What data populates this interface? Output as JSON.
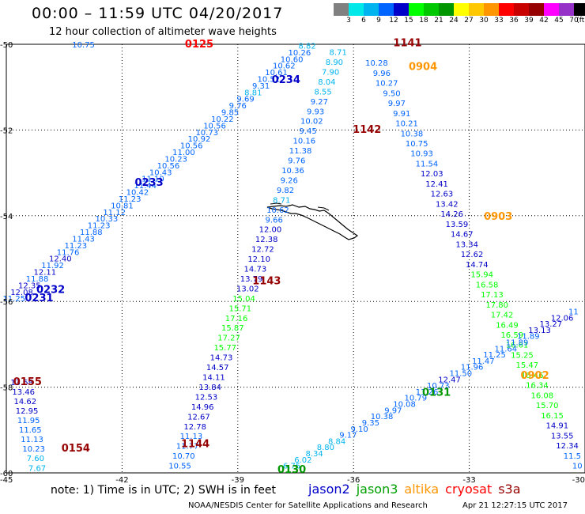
{
  "title": "00:00 – 11:59 UTC 04/20/2017",
  "subtitle": "12 hour collection of altimeter wave heights",
  "colorbar": {
    "colors": [
      "#808080",
      "#00e8e8",
      "#00b4f0",
      "#0064ff",
      "#0000c8",
      "#00ff00",
      "#00c800",
      "#009600",
      "#ffff00",
      "#ffc800",
      "#ff9600",
      "#ff0000",
      "#c80000",
      "#960000",
      "#ff00ff",
      "#9632c8",
      "#000000"
    ],
    "labels": [
      "3",
      "6",
      "9",
      "12",
      "15",
      "18",
      "21",
      "24",
      "27",
      "30",
      "33",
      "36",
      "39",
      "42",
      "45",
      "70",
      "(ft)"
    ]
  },
  "axes": {
    "lat_labels": [
      "-50",
      "-52",
      "-54",
      "-56",
      "-58",
      "-60"
    ],
    "lon_labels": [
      "-45",
      "-42",
      "-39",
      "-36",
      "-33",
      "-30"
    ]
  },
  "note": "note: 1) Time is in UTC; 2) SWH is in feet",
  "legend": [
    {
      "name": "jason2",
      "color": "#0000c8"
    },
    {
      "name": "jason3",
      "color": "#00a000"
    },
    {
      "name": "altika",
      "color": "#ff9600"
    },
    {
      "name": "cryosat",
      "color": "#ff0000"
    },
    {
      "name": "s3a",
      "color": "#960000"
    }
  ],
  "credit": "NOAA/NESDIS Center for Satellite Applications and Research",
  "stamp": "Apr 21 12:27:15 UTC 2017",
  "map": {
    "lat_range": [
      -60,
      -50
    ],
    "lon_range": [
      -45,
      -30
    ],
    "grid": true,
    "time_labels": [
      {
        "text": "0125",
        "lon": -40.0,
        "lat": -50.07,
        "color": "#ff0000"
      },
      {
        "text": "1141",
        "lon": -34.6,
        "lat": -50.05,
        "color": "#960000"
      },
      {
        "text": "0904",
        "lon": -34.2,
        "lat": -50.6,
        "color": "#ff9600"
      },
      {
        "text": "0234",
        "lon": -37.75,
        "lat": -50.9,
        "color": "#0000c8"
      },
      {
        "text": "1142",
        "lon": -35.65,
        "lat": -52.07,
        "color": "#960000"
      },
      {
        "text": "0233",
        "lon": -41.3,
        "lat": -53.3,
        "color": "#0000c8"
      },
      {
        "text": "0903",
        "lon": -32.25,
        "lat": -54.1,
        "color": "#ff9600"
      },
      {
        "text": "1143",
        "lon": -38.25,
        "lat": -55.6,
        "color": "#960000"
      },
      {
        "text": "0232",
        "lon": -43.85,
        "lat": -55.8,
        "color": "#0000c8"
      },
      {
        "text": "0231",
        "lon": -44.15,
        "lat": -56.0,
        "color": "#0000c8"
      },
      {
        "text": "0155",
        "lon": -44.45,
        "lat": -57.95,
        "color": "#960000"
      },
      {
        "text": "0902",
        "lon": -31.3,
        "lat": -57.8,
        "color": "#ff9600"
      },
      {
        "text": "0131",
        "lon": -33.85,
        "lat": -58.2,
        "color": "#009600"
      },
      {
        "text": "1144",
        "lon": -40.1,
        "lat": -59.4,
        "color": "#960000"
      },
      {
        "text": "0154",
        "lon": -43.2,
        "lat": -59.5,
        "color": "#960000"
      },
      {
        "text": "0130",
        "lon": -37.6,
        "lat": -60.0,
        "color": "#009600"
      }
    ],
    "tracks": [
      {
        "name": "pass-0231-0234",
        "start": [
          -44.8,
          -56.0
        ],
        "end": [
          -37.2,
          -50.1
        ],
        "values": [
          "11.25",
          "12.08",
          "12.35",
          "11.88",
          "12.11",
          "11.92",
          "12.40",
          "11.76",
          "11.23",
          "11.43",
          "11.88",
          "11.23",
          "10.33",
          "11.12",
          "10.81",
          "11.23",
          "10.42",
          "11.44",
          "11.10",
          "10.43",
          "10.56",
          "10.23",
          "11.00",
          "10.56",
          "10.92",
          "10.73",
          "10.56",
          "10.22",
          "9.85",
          "9.76",
          "9.69",
          "8.81",
          "9.31",
          "10.52",
          "10.61",
          "10.62",
          "10.60",
          "10.26",
          "8.82"
        ]
      },
      {
        "name": "pass-1141-1144",
        "start": [
          -36.4,
          -50.25
        ],
        "end": [
          -40.5,
          -59.9
        ],
        "values": [
          "8.71",
          "8.90",
          "7.90",
          "8.04",
          "8.55",
          "9.27",
          "9.93",
          "10.02",
          "9.45",
          "10.16",
          "11.38",
          "9.76",
          "10.36",
          "9.26",
          "9.82",
          "8.71",
          "10.62",
          "9.66",
          "12.00",
          "12.38",
          "12.72",
          "12.10",
          "14.73",
          "13.79",
          "13.02",
          "15.04",
          "15.71",
          "17.16",
          "15.87",
          "17.27",
          "15.77",
          "14.73",
          "14.57",
          "14.11",
          "13.84",
          "12.53",
          "14.96",
          "12.67",
          "12.78",
          "11.13",
          "11.77",
          "10.70",
          "10.55"
        ]
      },
      {
        "name": "pass-0901-0904",
        "start": [
          -35.4,
          -50.5
        ],
        "end": [
          -30.2,
          -59.9
        ],
        "values": [
          "10.28",
          "9.96",
          "10.27",
          "9.50",
          "9.97",
          "9.91",
          "10.21",
          "10.38",
          "10.75",
          "10.93",
          "11.54",
          "12.03",
          "12.41",
          "12.63",
          "13.42",
          "14.26",
          "13.59",
          "14.67",
          "13.34",
          "12.62",
          "14.74",
          "15.94",
          "16.58",
          "17.13",
          "17.80",
          "17.42",
          "16.49",
          "16.59",
          "16.61",
          "15.25",
          "15.47",
          "16.46",
          "16.34",
          "16.08",
          "15.70",
          "16.15",
          "14.91",
          "13.55",
          "12.34",
          "11.5",
          "10"
        ]
      },
      {
        "name": "pass-0130-0131",
        "start": [
          -37.6,
          -59.9
        ],
        "end": [
          -30.3,
          -56.3
        ],
        "values": [
          "6.75",
          "6.02",
          "8.34",
          "8.80",
          "8.84",
          "9.17",
          "9.10",
          "9.35",
          "10.38",
          "9.97",
          "10.08",
          "10.79",
          "11.26",
          "10.73",
          "12.47",
          "11.50",
          "11.96",
          "11.47",
          "11.25",
          "11.64",
          "11.89",
          "11.89",
          "13.13",
          "13.27",
          "12.06",
          "11"
        ]
      },
      {
        "name": "pass-0154-0155",
        "start": [
          -44.6,
          -57.95
        ],
        "end": [
          -44.2,
          -59.95
        ],
        "values": [
          "13.68",
          "13.46",
          "14.62",
          "12.95",
          "11.95",
          "11.65",
          "11.13",
          "10.23",
          "7.60",
          "7.67"
        ]
      },
      {
        "name": "pass-0125",
        "start": [
          -43.0,
          -50.07
        ],
        "end": [
          -43.0,
          -50.07
        ],
        "values": [
          "10.75"
        ]
      }
    ]
  }
}
